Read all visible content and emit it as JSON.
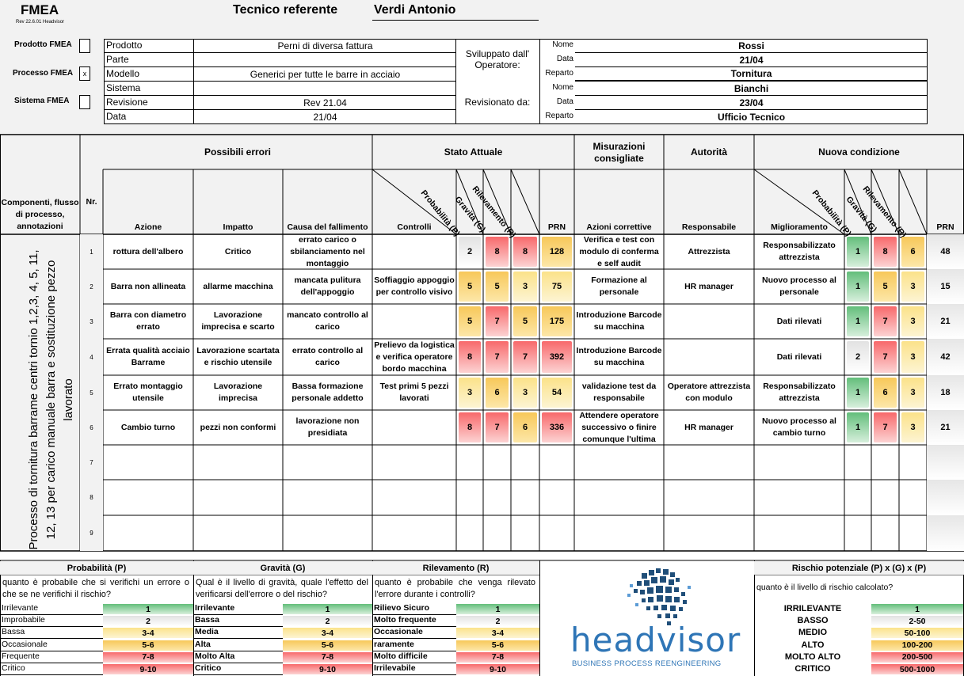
{
  "header": {
    "title": "FMEA",
    "version": "Rev 22.6.01 Headvisor",
    "tecnico_label": "Tecnico referente",
    "tecnico_value": "Verdi Antonio",
    "types": [
      {
        "label": "Prodotto FMEA",
        "mark": ""
      },
      {
        "label": "Processo FMEA",
        "mark": "x"
      },
      {
        "label": "Sistema FMEA",
        "mark": ""
      }
    ],
    "info": [
      {
        "label": "Prodotto",
        "value": "Perni di diversa fattura"
      },
      {
        "label": "Parte",
        "value": ""
      },
      {
        "label": "Modello",
        "value": "Generici per tutte le barre in acciaio"
      },
      {
        "label": "Sistema",
        "value": ""
      },
      {
        "label": "Revisione",
        "value": "Rev 21.04"
      },
      {
        "label": "Data",
        "value": "21/04"
      }
    ],
    "sviluppato_label": "Sviluppato dall' Operatore:",
    "revisionato_label": "Revisionato da:",
    "people": [
      {
        "label": "Nome",
        "value": "Rossi"
      },
      {
        "label": "Data",
        "value": "21/04"
      },
      {
        "label": "Reparto",
        "value": "Tornitura"
      },
      {
        "label": "Nome",
        "value": "Bianchi"
      },
      {
        "label": "Data",
        "value": "23/04"
      },
      {
        "label": "Reparto",
        "value": "Ufficio Tecnico"
      }
    ]
  },
  "table": {
    "groups": {
      "componenti": "Componenti, flusso di processo, annotazioni",
      "nr": "Nr.",
      "errori": "Possibili errori",
      "stato": "Stato Attuale",
      "misurazioni": "Misurazioni consigliate",
      "autorita": "Autorità",
      "nuova": "Nuova condizione"
    },
    "columns": {
      "azione": "Azione",
      "impatto": "Impatto",
      "causa": "Causa del fallimento",
      "controlli": "Controlli",
      "prob": "Probabilità (P)",
      "grav": "Gravità (G)",
      "ril": "Rilevamento (R)",
      "prn": "PRN",
      "azioni_corr": "Azioni correttive",
      "responsabile": "Responsabile",
      "miglioramento": "Miglioramento",
      "prn2": "PRN"
    },
    "side_text": "Processo di tornitura barrame centri tornio 1,2,3, 4, 5, 11, 12, 13 per carico manuale barra e sostituzione pezzo lavorato",
    "rows": [
      {
        "nr": "1",
        "azione": "rottura dell'albero",
        "impatto": "Critico",
        "causa": "errato carico o sbilanciamento nel montaggio",
        "controlli": "",
        "p": "2",
        "g": "8",
        "r": "8",
        "prn": "128",
        "azioni": "Verifica e test con modulo di conferma e self audit",
        "resp": "Attrezzista",
        "migl": "Responsabilizzato attrezzista",
        "p2": "1",
        "g2": "8",
        "r2": "6",
        "prn2": "48"
      },
      {
        "nr": "2",
        "azione": "Barra non allineata",
        "impatto": "allarme macchina",
        "causa": "mancata pulitura dell'appoggio",
        "controlli": "Soffiaggio appoggio per controllo visivo",
        "p": "5",
        "g": "5",
        "r": "3",
        "prn": "75",
        "azioni": "Formazione al personale",
        "resp": "HR manager",
        "migl": "Nuovo processo al personale",
        "p2": "1",
        "g2": "5",
        "r2": "3",
        "prn2": "15"
      },
      {
        "nr": "3",
        "azione": "Barra con diametro errato",
        "impatto": "Lavorazione imprecisa e scarto",
        "causa": "mancato controllo al carico",
        "controlli": "",
        "p": "5",
        "g": "7",
        "r": "5",
        "prn": "175",
        "azioni": "Introduzione Barcode su macchina",
        "resp": "",
        "migl": "Dati rilevati",
        "p2": "1",
        "g2": "7",
        "r2": "3",
        "prn2": "21"
      },
      {
        "nr": "4",
        "azione": "Errata qualità acciaio Barrame",
        "impatto": "Lavorazione scartata e rischio utensile",
        "causa": "errato controllo al carico",
        "controlli": "Prelievo da logistica e verifica operatore bordo macchina",
        "p": "8",
        "g": "7",
        "r": "7",
        "prn": "392",
        "azioni": "Introduzione Barcode su macchina",
        "resp": "",
        "migl": "Dati rilevati",
        "p2": "2",
        "g2": "7",
        "r2": "3",
        "prn2": "42"
      },
      {
        "nr": "5",
        "azione": "Errato montaggio utensile",
        "impatto": "Lavorazione imprecisa",
        "causa": "Bassa formazione personale addetto",
        "controlli": "Test primi 5 pezzi lavorati",
        "p": "3",
        "g": "6",
        "r": "3",
        "prn": "54",
        "azioni": "validazione test da responsabile",
        "resp": "Operatore attrezzista con modulo",
        "migl": "Responsabilizzato attrezzista",
        "p2": "1",
        "g2": "6",
        "r2": "3",
        "prn2": "18"
      },
      {
        "nr": "6",
        "azione": "Cambio turno",
        "impatto": "pezzi non conformi",
        "causa": "lavorazione non presidiata",
        "controlli": "",
        "p": "8",
        "g": "7",
        "r": "6",
        "prn": "336",
        "azioni": "Attendere operatore successivo o finire comunque l'ultima",
        "resp": "HR manager",
        "migl": "Nuovo processo al cambio turno",
        "p2": "1",
        "g2": "7",
        "r2": "3",
        "prn2": "21"
      },
      {
        "nr": "7"
      },
      {
        "nr": "8"
      },
      {
        "nr": "9"
      }
    ]
  },
  "legend": {
    "probabilita": {
      "title": "Probabilità (P)",
      "question": "quanto è probabile che si verifichi un errore o che se ne verifichi il rischio?",
      "items": [
        {
          "label": "Irrilevante",
          "value": "1"
        },
        {
          "label": "Improbabile",
          "value": "2"
        },
        {
          "label": "Bassa",
          "value": "3-4"
        },
        {
          "label": "Occasionale",
          "value": "5-6"
        },
        {
          "label": "Frequente",
          "value": "7-8"
        },
        {
          "label": "Critico",
          "value": "9-10"
        }
      ]
    },
    "gravita": {
      "title": "Gravità (G)",
      "question": "Qual è il livello di gravità, quale l'effetto del verificarsi dell'errore o del rischio?",
      "items": [
        {
          "label": "Irrilevante",
          "value": "1"
        },
        {
          "label": "Bassa",
          "value": "2"
        },
        {
          "label": "Media",
          "value": "3-4"
        },
        {
          "label": "Alta",
          "value": "5-6"
        },
        {
          "label": "Molto Alta",
          "value": "7-8"
        },
        {
          "label": "Critico",
          "value": "9-10"
        }
      ]
    },
    "rilevamento": {
      "title": "Rilevamento (R)",
      "question": "quanto è probabile che venga rilevato l'errore durante i controlli?",
      "items": [
        {
          "label": "Rilievo Sicuro",
          "value": "1"
        },
        {
          "label": "Molto frequente",
          "value": "2"
        },
        {
          "label": "Occasionale",
          "value": "3-4"
        },
        {
          "label": "raramente",
          "value": "5-6"
        },
        {
          "label": "Molto difficile",
          "value": "7-8"
        },
        {
          "label": "Irrilevabile",
          "value": "9-10"
        }
      ]
    },
    "rischio": {
      "title": "Rischio potenziale (P) x (G) x (P)",
      "question": "quanto è il livello di rischio calcolato?",
      "items": [
        {
          "label": "IRRILEVANTE",
          "value": "1"
        },
        {
          "label": "BASSO",
          "value": "2-50"
        },
        {
          "label": "MEDIO",
          "value": "50-100"
        },
        {
          "label": "ALTO",
          "value": "100-200"
        },
        {
          "label": "MOLTO ALTO",
          "value": "200-500"
        },
        {
          "label": "CRITICO",
          "value": "500-1000"
        }
      ]
    },
    "logo": {
      "name": "headvisor",
      "tagline": "BUSINESS PROCESS REENGINEERING"
    }
  }
}
